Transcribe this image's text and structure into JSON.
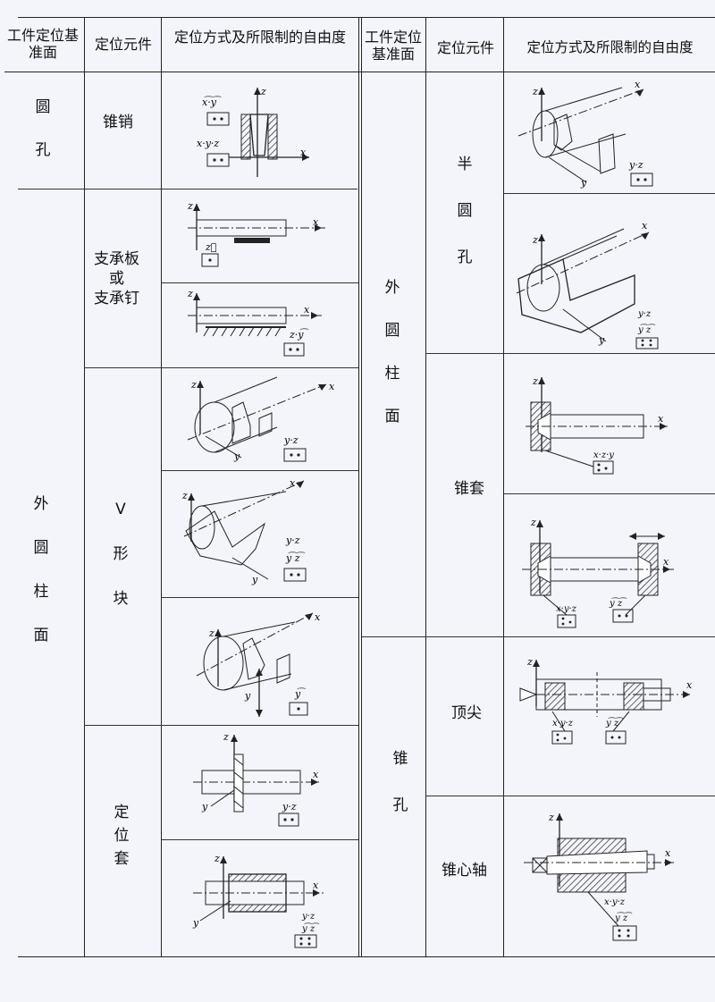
{
  "headers": {
    "ref_surface": "工件定位基准面",
    "element": "定位元件",
    "method": "定位方式及所限制的自由度",
    "method_right": "定位方式及所限制的自由度"
  },
  "left": {
    "surf_hole": "圆孔",
    "surf_cyl": "外圆柱面",
    "el_cone_pin": "锥销",
    "el_support": "支承板\n或\n支承钉",
    "el_v": "V\n形\n块",
    "el_sleeve": "定\n位\n套"
  },
  "right": {
    "surf_cyl": "外圆柱面",
    "surf_cone_hole": "锥孔",
    "el_half_hole": "半\n圆\n孔",
    "el_cone_sleeve": "锥套",
    "el_centers": "顶尖",
    "el_mandrel": "锥心轴"
  },
  "figure_labels": {
    "x": "x",
    "y": "y",
    "z": "z",
    "xy": "x⃗·y⃗",
    "xyz": "x⃗·y⃗·z⃗",
    "z_only": "z⃗",
    "zy": "z⃗·y⃗",
    "yz": "y⃗·z⃗",
    "xz_y": "x⃗·z⃗·y⃗",
    "y_only": "y⃗",
    "yz_rot": "y⃗·z⃗ ⌒"
  }
}
